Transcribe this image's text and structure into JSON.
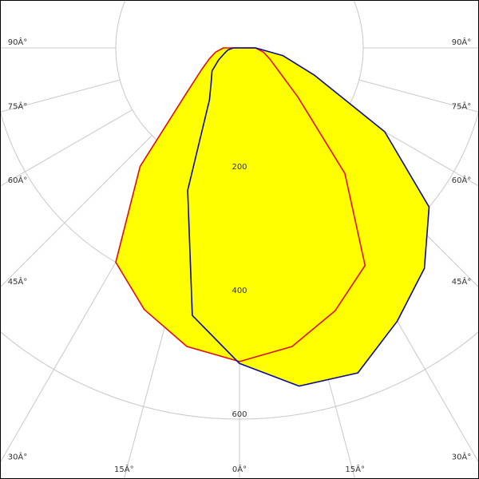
{
  "chart_data": {
    "type": "polar",
    "x": [
      -90,
      -80,
      -70,
      -60,
      -50,
      -40,
      -30,
      -20,
      -10,
      0,
      10,
      20,
      30,
      40,
      50,
      60,
      70,
      80,
      90
    ],
    "series": [
      {
        "color": "#e01010",
        "values": [
          26,
          39,
          52,
          71,
          110,
          250,
          400,
          450,
          490,
          507,
          490,
          452,
          406,
          265,
          123,
          72,
          52,
          39,
          26
        ]
      },
      {
        "color": "#0a0aa0",
        "values": [
          10,
          19,
          26,
          39,
          58,
          71,
          97,
          245,
          439,
          510,
          555,
          559,
          510,
          465,
          400,
          271,
          129,
          71,
          26
        ]
      }
    ],
    "fill": "#ffff00",
    "ylim": [
      0,
      800
    ],
    "yticks": [
      200,
      400,
      600
    ],
    "xticks": [
      {
        "value": -90,
        "label": "90Â°"
      },
      {
        "value": -75,
        "label": "75Â°"
      },
      {
        "value": -60,
        "label": "60Â°"
      },
      {
        "value": -45,
        "label": "45Â°"
      },
      {
        "value": -30,
        "label": "30Â°"
      },
      {
        "value": -15,
        "label": "15Â°"
      },
      {
        "value": 0,
        "label": "0Â°"
      },
      {
        "value": 15,
        "label": "15Â°"
      },
      {
        "value": 30,
        "label": "30Â°"
      },
      {
        "value": 45,
        "label": "45Â°"
      },
      {
        "value": 60,
        "label": "60Â°"
      },
      {
        "value": 75,
        "label": "75Â°"
      },
      {
        "value": 90,
        "label": "90Â°"
      }
    ],
    "grid": true
  }
}
